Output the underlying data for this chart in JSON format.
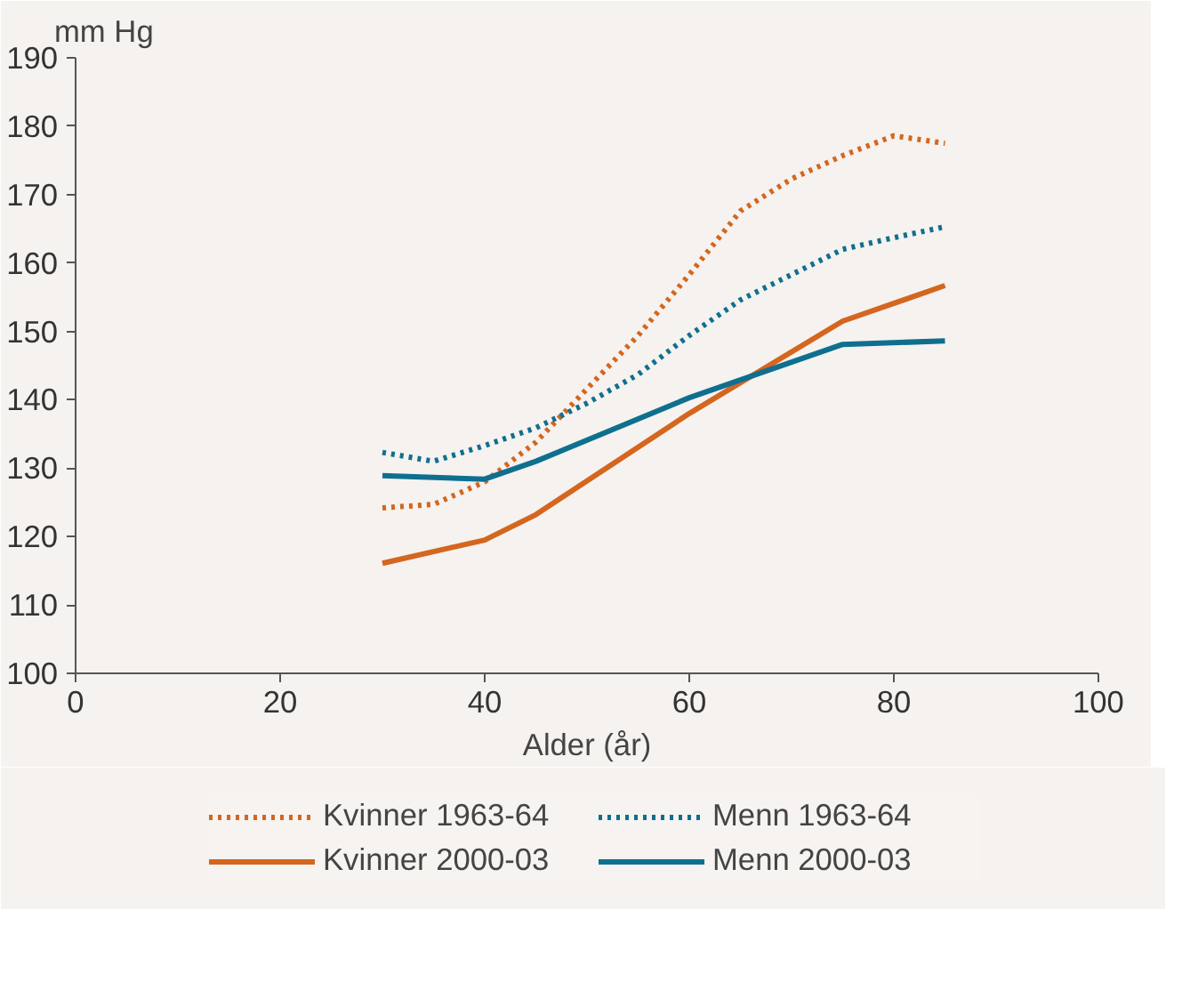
{
  "chart_data": {
    "type": "line",
    "xlabel": "Alder (år)",
    "ylabel": "mm Hg",
    "xlim": [
      0,
      100
    ],
    "ylim": [
      100,
      190
    ],
    "xticks": [
      0,
      20,
      40,
      60,
      80,
      100
    ],
    "yticks": [
      100,
      110,
      120,
      130,
      140,
      150,
      160,
      170,
      180,
      190
    ],
    "grid": false,
    "legend": "bottom",
    "marker": "none",
    "series": [
      {
        "name": "Kvinner 1963-64",
        "color": "#d4661f",
        "line_style": "dotted",
        "x": [
          30,
          35,
          40,
          45,
          50,
          55,
          60,
          65,
          70,
          75,
          80,
          85
        ],
        "values": [
          124.2,
          124.7,
          128,
          133.8,
          141.6,
          149.4,
          158.3,
          167.6,
          172.3,
          175.7,
          178.6,
          177.5
        ]
      },
      {
        "name": "Kvinner 2000-03",
        "color": "#d4661f",
        "line_style": "solid",
        "x": [
          30,
          40,
          45,
          60,
          75,
          85
        ],
        "values": [
          116.1,
          119.5,
          123.2,
          138,
          151.5,
          156.7
        ]
      },
      {
        "name": "Menn 1963-64",
        "color": "#0f6f8f",
        "line_style": "dotted",
        "x": [
          30,
          35,
          40,
          45,
          50,
          55,
          60,
          65,
          70,
          75,
          80,
          85
        ],
        "values": [
          132.3,
          131,
          133.3,
          135.9,
          139.5,
          143.7,
          149.4,
          154.6,
          158.3,
          162,
          163.7,
          165.3
        ]
      },
      {
        "name": "Menn 2000-03",
        "color": "#0f6f8f",
        "line_style": "solid",
        "x": [
          30,
          40,
          45,
          60,
          75,
          85
        ],
        "values": [
          128.9,
          128.4,
          131,
          140.3,
          148.1,
          148.6
        ]
      }
    ]
  }
}
